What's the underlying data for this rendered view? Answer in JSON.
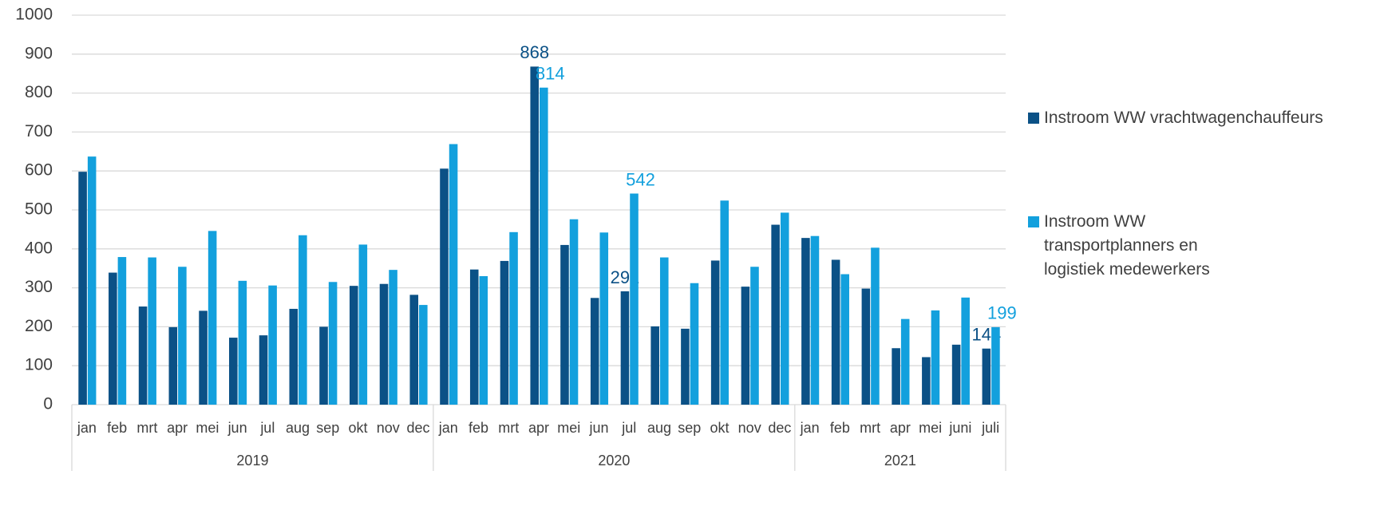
{
  "chart_data": {
    "type": "bar",
    "groups": [
      {
        "name": "2019",
        "categories": [
          "jan",
          "feb",
          "mrt",
          "apr",
          "mei",
          "jun",
          "jul",
          "aug",
          "sep",
          "okt",
          "nov",
          "dec"
        ]
      },
      {
        "name": "2020",
        "categories": [
          "jan",
          "feb",
          "mrt",
          "apr",
          "mei",
          "jun",
          "jul",
          "aug",
          "sep",
          "okt",
          "nov",
          "dec"
        ]
      },
      {
        "name": "2021",
        "categories": [
          "jan",
          "feb",
          "mrt",
          "apr",
          "mei",
          "juni",
          "juli"
        ]
      }
    ],
    "series": [
      {
        "name": "Instroom WW vrachtwagenchauffeurs",
        "color": "#0b5186",
        "values": [
          598,
          339,
          252,
          199,
          241,
          172,
          178,
          246,
          200,
          305,
          310,
          282,
          606,
          347,
          369,
          868,
          410,
          274,
          291,
          201,
          195,
          370,
          303,
          462,
          428,
          372,
          298,
          145,
          122,
          154,
          144
        ],
        "value_labels": [
          null,
          null,
          null,
          null,
          null,
          null,
          null,
          null,
          null,
          null,
          null,
          null,
          null,
          null,
          null,
          "868",
          null,
          null,
          "291",
          null,
          null,
          null,
          null,
          null,
          null,
          null,
          null,
          null,
          null,
          null,
          "144"
        ]
      },
      {
        "name": "Instroom WW transportplanners en logistiek medewerkers",
        "color": "#13a0dd",
        "values": [
          637,
          379,
          378,
          354,
          446,
          318,
          306,
          435,
          315,
          411,
          346,
          256,
          669,
          330,
          443,
          814,
          476,
          442,
          542,
          378,
          312,
          524,
          354,
          493,
          433,
          335,
          403,
          220,
          242,
          275,
          199
        ],
        "value_labels": [
          null,
          null,
          null,
          null,
          null,
          null,
          null,
          null,
          null,
          null,
          null,
          null,
          null,
          null,
          null,
          "814",
          null,
          null,
          "542",
          null,
          null,
          null,
          null,
          null,
          null,
          null,
          null,
          null,
          null,
          null,
          "199"
        ]
      }
    ],
    "ylim": [
      0,
      1000
    ],
    "yticks": [
      0,
      100,
      200,
      300,
      400,
      500,
      600,
      700,
      800,
      900,
      1000
    ],
    "grid": true,
    "legend": "right"
  }
}
